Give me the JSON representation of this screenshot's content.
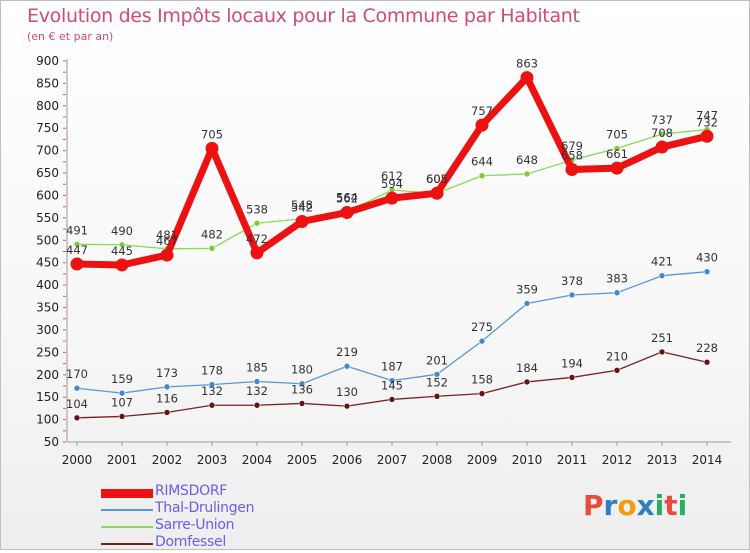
{
  "header": {
    "title": "Evolution des Impôts locaux pour la Commune par Habitant",
    "subtitle": "(en € et par an)"
  },
  "brand": {
    "text": "Proxiti",
    "colors": [
      "#e84c3d",
      "#2f7fc0",
      "#f39c12",
      "#2f7fc0",
      "#27ae60",
      "#e84c3d",
      "#27ae60"
    ]
  },
  "chart_data": {
    "type": "line",
    "x": [
      "2000",
      "2001",
      "2002",
      "2003",
      "2004",
      "2005",
      "2006",
      "2007",
      "2008",
      "2009",
      "2010",
      "2011",
      "2012",
      "2013",
      "2014"
    ],
    "ylim": [
      50,
      900
    ],
    "yticks": [
      50,
      100,
      150,
      200,
      250,
      300,
      350,
      400,
      450,
      500,
      550,
      600,
      650,
      700,
      750,
      800,
      850,
      900
    ],
    "grid": false,
    "legend_position": "bottom-left",
    "series": [
      {
        "name": "RIMSDORF",
        "color": "#ee1111",
        "dot": "#ee1111",
        "width": 7,
        "values": [
          447,
          445,
          467,
          705,
          472,
          542,
          562,
          594,
          605,
          757,
          863,
          658,
          661,
          708,
          732
        ],
        "labels": [
          "447",
          "445",
          "467",
          "705",
          "472",
          "542",
          "562",
          "594",
          "605",
          "757",
          "863",
          "658",
          "661",
          "708",
          "732"
        ]
      },
      {
        "name": "Thal-Drulingen",
        "color": "#5599dd",
        "dot": "#4488cc",
        "width": 1.3,
        "values": [
          170,
          159,
          173,
          178,
          185,
          180,
          219,
          187,
          201,
          275,
          359,
          378,
          383,
          421,
          430
        ],
        "labels": [
          "170",
          "159",
          "173",
          "178",
          "185",
          "180",
          "219",
          "187",
          "201",
          "275",
          "359",
          "378",
          "383",
          "421",
          "430"
        ]
      },
      {
        "name": "Sarre-Union",
        "color": "#88dd55",
        "dot": "#77cc33",
        "width": 1.3,
        "values": [
          491,
          490,
          481,
          482,
          538,
          548,
          564,
          612,
          605,
          644,
          648,
          679,
          705,
          737,
          747
        ],
        "labels": [
          "491",
          "490",
          "481",
          "482",
          "538",
          "548",
          "564",
          "612",
          "605",
          "644",
          "648",
          "679",
          "705",
          "737",
          "747"
        ]
      },
      {
        "name": "Domfessel",
        "color": "#772222",
        "dot": "#661111",
        "width": 1.3,
        "values": [
          104,
          107,
          116,
          132,
          132,
          136,
          130,
          145,
          152,
          158,
          184,
          194,
          210,
          251,
          228
        ],
        "labels": [
          "104",
          "107",
          "116",
          "132",
          "132",
          "136",
          "130",
          "145",
          "152",
          "158",
          "184",
          "194",
          "210",
          "251",
          "228"
        ]
      }
    ]
  }
}
